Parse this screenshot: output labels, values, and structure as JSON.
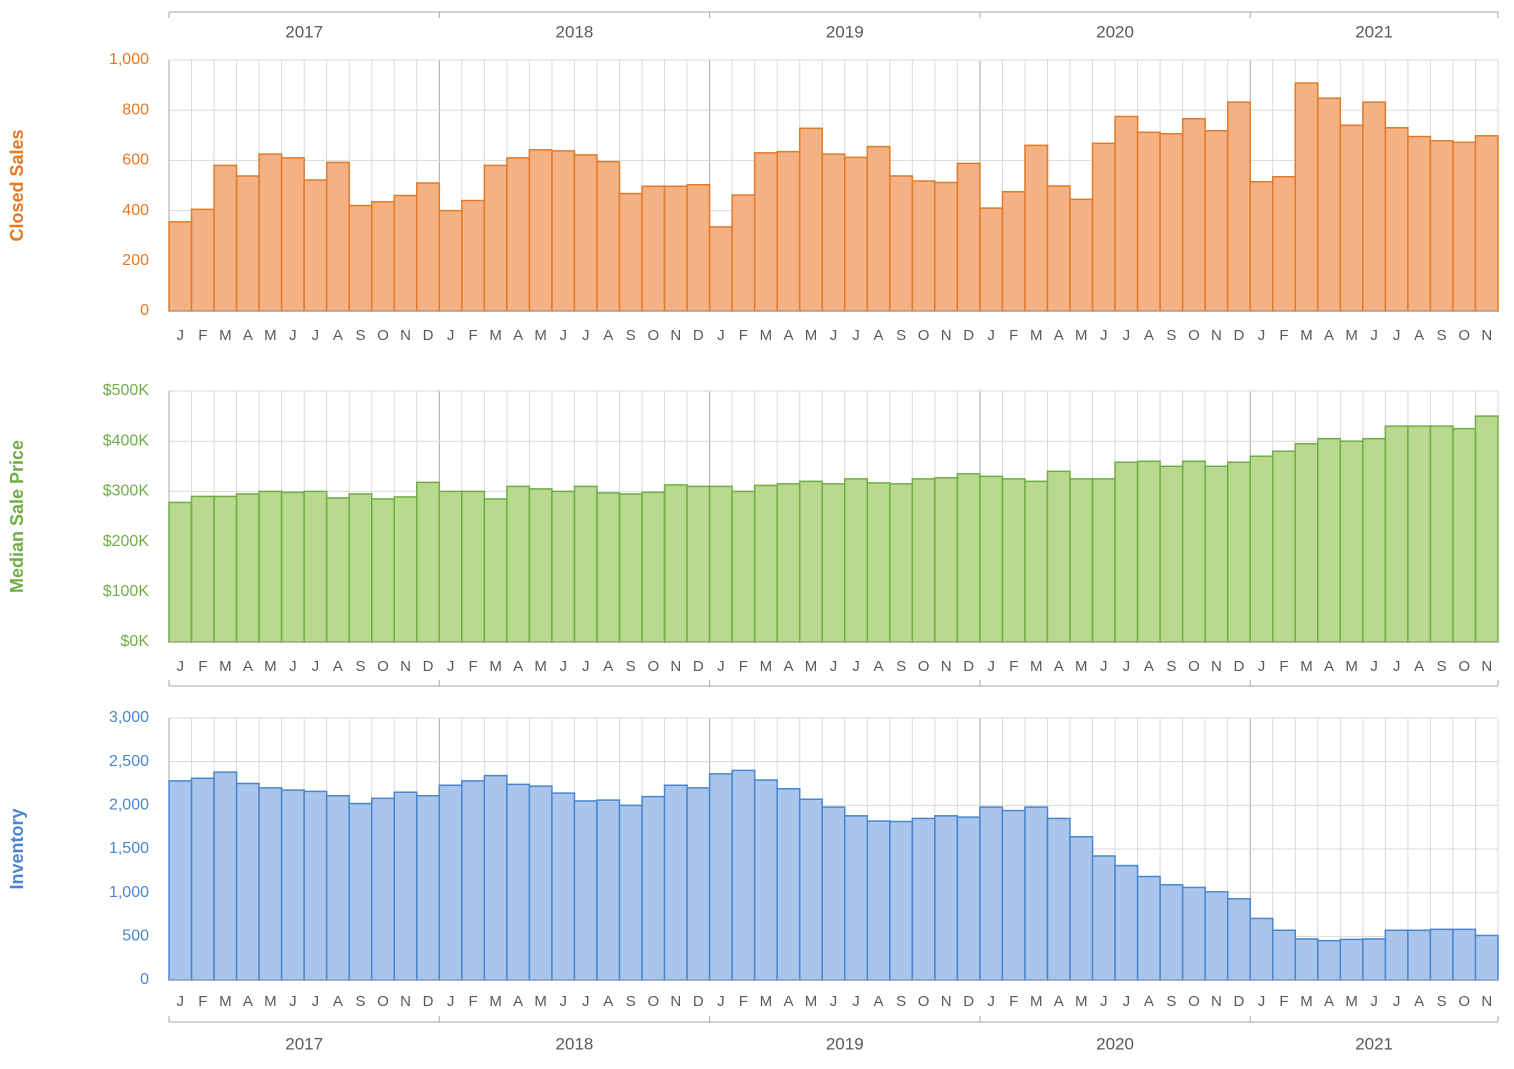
{
  "chart_data": [
    {
      "type": "bar",
      "y_label": "Closed Sales",
      "x_groups": [
        "2017",
        "2018",
        "2019",
        "2020",
        "2021"
      ],
      "categories": [
        "J",
        "F",
        "M",
        "A",
        "M",
        "J",
        "J",
        "A",
        "S",
        "O",
        "N",
        "D",
        "J",
        "F",
        "M",
        "A",
        "M",
        "J",
        "J",
        "A",
        "S",
        "O",
        "N",
        "D",
        "J",
        "F",
        "M",
        "A",
        "M",
        "J",
        "J",
        "A",
        "S",
        "O",
        "N",
        "D",
        "J",
        "F",
        "M",
        "A",
        "M",
        "J",
        "J",
        "A",
        "S",
        "O",
        "N",
        "D",
        "J",
        "F",
        "M",
        "A",
        "M",
        "J",
        "J",
        "A",
        "S",
        "O",
        "N"
      ],
      "values": [
        355,
        405,
        580,
        538,
        625,
        610,
        522,
        592,
        420,
        435,
        460,
        510,
        400,
        440,
        580,
        610,
        642,
        638,
        622,
        595,
        468,
        497,
        497,
        503,
        335,
        462,
        630,
        635,
        728,
        625,
        612,
        655,
        538,
        518,
        512,
        588,
        410,
        475,
        660,
        498,
        445,
        668,
        775,
        712,
        706,
        766,
        718,
        832,
        515,
        535,
        908,
        848,
        740,
        832,
        730,
        695,
        678,
        672,
        698
      ],
      "color": "#f4b183",
      "edge_color": "#e07b2a",
      "label_color": "#e87722",
      "ylim": [
        0,
        1000
      ],
      "yticks": [
        0,
        200,
        400,
        600,
        800,
        {
          "value": 1000,
          "label": "1,000"
        }
      ],
      "grid": true
    },
    {
      "type": "bar",
      "y_label": "Median Sale Price",
      "categories": [
        "J",
        "F",
        "M",
        "A",
        "M",
        "J",
        "J",
        "A",
        "S",
        "O",
        "N",
        "D",
        "J",
        "F",
        "M",
        "A",
        "M",
        "J",
        "J",
        "A",
        "S",
        "O",
        "N",
        "D",
        "J",
        "F",
        "M",
        "A",
        "M",
        "J",
        "J",
        "A",
        "S",
        "O",
        "N",
        "D",
        "J",
        "F",
        "M",
        "A",
        "M",
        "J",
        "J",
        "A",
        "S",
        "O",
        "N",
        "D",
        "J",
        "F",
        "M",
        "A",
        "M",
        "J",
        "J",
        "A",
        "S",
        "O",
        "N"
      ],
      "values": [
        278,
        290,
        290,
        295,
        300,
        298,
        300,
        287,
        295,
        285,
        289,
        318,
        300,
        300,
        285,
        310,
        305,
        300,
        310,
        297,
        295,
        298,
        313,
        310,
        310,
        300,
        312,
        315,
        320,
        315,
        325,
        317,
        315,
        325,
        327,
        335,
        330,
        325,
        320,
        340,
        325,
        325,
        358,
        360,
        350,
        360,
        350,
        358,
        370,
        380,
        395,
        405,
        400,
        405,
        430,
        430,
        430,
        425,
        450
      ],
      "color": "#b9d98f",
      "edge_color": "#70ad47",
      "label_color": "#70ad47",
      "ylim": [
        0,
        500
      ],
      "yticks": [
        {
          "value": 0,
          "label": "$0K"
        },
        {
          "value": 100,
          "label": "$100K"
        },
        {
          "value": 200,
          "label": "$200K"
        },
        {
          "value": 300,
          "label": "$300K"
        },
        {
          "value": 400,
          "label": "$400K"
        },
        {
          "value": 500,
          "label": "$500K"
        }
      ],
      "grid": true
    },
    {
      "type": "bar",
      "y_label": "Inventory",
      "x_groups": [
        "2017",
        "2018",
        "2019",
        "2020",
        "2021"
      ],
      "categories": [
        "J",
        "F",
        "M",
        "A",
        "M",
        "J",
        "J",
        "A",
        "S",
        "O",
        "N",
        "D",
        "J",
        "F",
        "M",
        "A",
        "M",
        "J",
        "J",
        "A",
        "S",
        "O",
        "N",
        "D",
        "J",
        "F",
        "M",
        "A",
        "M",
        "J",
        "J",
        "A",
        "S",
        "O",
        "N",
        "D",
        "J",
        "F",
        "M",
        "A",
        "M",
        "J",
        "J",
        "A",
        "S",
        "O",
        "N",
        "D",
        "J",
        "F",
        "M",
        "A",
        "M",
        "J",
        "J",
        "A",
        "S",
        "O",
        "N"
      ],
      "values": [
        2280,
        2310,
        2380,
        2250,
        2200,
        2175,
        2160,
        2110,
        2020,
        2080,
        2150,
        2110,
        2230,
        2280,
        2340,
        2240,
        2220,
        2140,
        2050,
        2060,
        2000,
        2100,
        2230,
        2200,
        2360,
        2400,
        2290,
        2190,
        2070,
        1980,
        1880,
        1820,
        1815,
        1850,
        1880,
        1865,
        1980,
        1940,
        1980,
        1850,
        1640,
        1420,
        1310,
        1185,
        1090,
        1060,
        1010,
        930,
        705,
        570,
        470,
        450,
        465,
        470,
        570,
        570,
        580,
        580,
        510
      ],
      "color": "#a9c5eb",
      "edge_color": "#4a86d0",
      "label_color": "#4a86d0",
      "ylim": [
        0,
        3000
      ],
      "yticks": [
        0,
        {
          "value": 500,
          "label": "500"
        },
        {
          "value": 1000,
          "label": "1,000"
        },
        {
          "value": 1500,
          "label": "1,500"
        },
        {
          "value": 2000,
          "label": "2,000"
        },
        {
          "value": 2500,
          "label": "2,500"
        },
        {
          "value": 3000,
          "label": "3,000"
        }
      ],
      "grid": true
    }
  ]
}
